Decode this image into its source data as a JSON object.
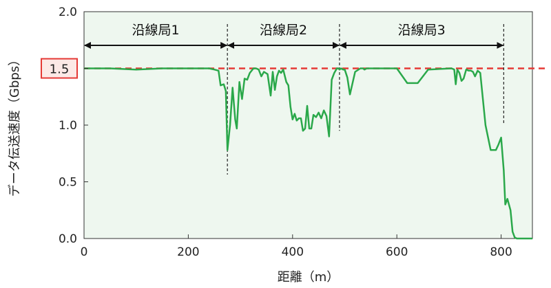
{
  "chart_data": {
    "type": "line",
    "xlabel": "距離（m）",
    "ylabel": "データ伝送速度（Gbps）",
    "xlim": [
      0,
      860
    ],
    "ylim": [
      0.0,
      2.0
    ],
    "x_ticks": [
      0,
      200,
      400,
      600,
      800
    ],
    "y_ticks": [
      0.0,
      0.5,
      1.0,
      1.5,
      2.0
    ],
    "x_tick_labels": [
      "0",
      "200",
      "400",
      "600",
      "800"
    ],
    "y_tick_labels": [
      "0.0",
      "0.5",
      "1.0",
      "1.5",
      "2.0"
    ],
    "grid": false,
    "colors": {
      "series": "#2aa84a",
      "reference": "#e53935",
      "plot_background": "#eef7ef",
      "highlight_box": "#fce9e6",
      "highlight_border": "#e53935"
    },
    "reference_line": {
      "y": 1.5,
      "label": "1.5"
    },
    "regions": [
      {
        "label": "沿線局1",
        "x_start": 0,
        "x_end": 275
      },
      {
        "label": "沿線局2",
        "x_start": 275,
        "x_end": 490
      },
      {
        "label": "沿線局3",
        "x_start": 490,
        "x_end": 805
      }
    ],
    "boundaries": [
      275,
      490,
      805
    ],
    "series": [
      {
        "x": [
          0,
          50,
          100,
          150,
          200,
          240,
          250,
          258,
          262,
          268,
          272,
          275,
          280,
          285,
          290,
          293,
          298,
          303,
          308,
          313,
          318,
          325,
          330,
          335,
          340,
          345,
          352,
          358,
          362,
          366,
          370,
          374,
          378,
          382,
          388,
          392,
          396,
          400,
          404,
          408,
          412,
          416,
          420,
          424,
          428,
          432,
          436,
          440,
          445,
          450,
          455,
          460,
          465,
          470,
          475,
          480,
          485,
          488,
          490,
          493,
          497,
          500,
          505,
          510,
          520,
          530,
          535,
          538,
          542,
          545,
          550,
          560,
          580,
          600,
          620,
          640,
          660,
          705,
          710,
          713,
          716,
          720,
          724,
          728,
          733,
          738,
          742,
          746,
          750,
          755,
          760,
          770,
          780,
          790,
          795,
          800,
          805,
          808,
          812,
          818,
          822,
          826,
          830,
          833,
          836,
          840,
          845,
          850,
          855,
          860
        ],
        "y": [
          1.5,
          1.5,
          1.49,
          1.5,
          1.5,
          1.5,
          1.49,
          1.48,
          1.35,
          1.36,
          1.3,
          0.78,
          1.0,
          1.33,
          1.05,
          0.97,
          1.38,
          1.23,
          1.41,
          1.4,
          1.46,
          1.5,
          1.5,
          1.49,
          1.43,
          1.47,
          1.45,
          1.26,
          1.47,
          1.31,
          1.43,
          1.48,
          1.46,
          1.49,
          1.38,
          1.35,
          1.16,
          1.05,
          1.1,
          1.04,
          1.06,
          1.06,
          0.95,
          0.97,
          1.17,
          0.97,
          0.97,
          1.09,
          1.07,
          1.11,
          1.06,
          1.13,
          1.08,
          0.9,
          1.4,
          1.46,
          1.5,
          1.5,
          1.49,
          1.5,
          1.49,
          1.49,
          1.42,
          1.27,
          1.47,
          1.5,
          1.5,
          1.49,
          1.5,
          1.5,
          1.5,
          1.5,
          1.5,
          1.5,
          1.37,
          1.37,
          1.49,
          1.5,
          1.49,
          1.36,
          1.49,
          1.46,
          1.39,
          1.41,
          1.49,
          1.48,
          1.48,
          1.47,
          1.43,
          1.48,
          1.46,
          1.0,
          0.78,
          0.78,
          0.83,
          0.89,
          0.6,
          0.3,
          0.35,
          0.25,
          0.06,
          0.01,
          0.0,
          0.0,
          0.0,
          0.0,
          0.0,
          0.0,
          0.0,
          0.0
        ]
      }
    ]
  }
}
